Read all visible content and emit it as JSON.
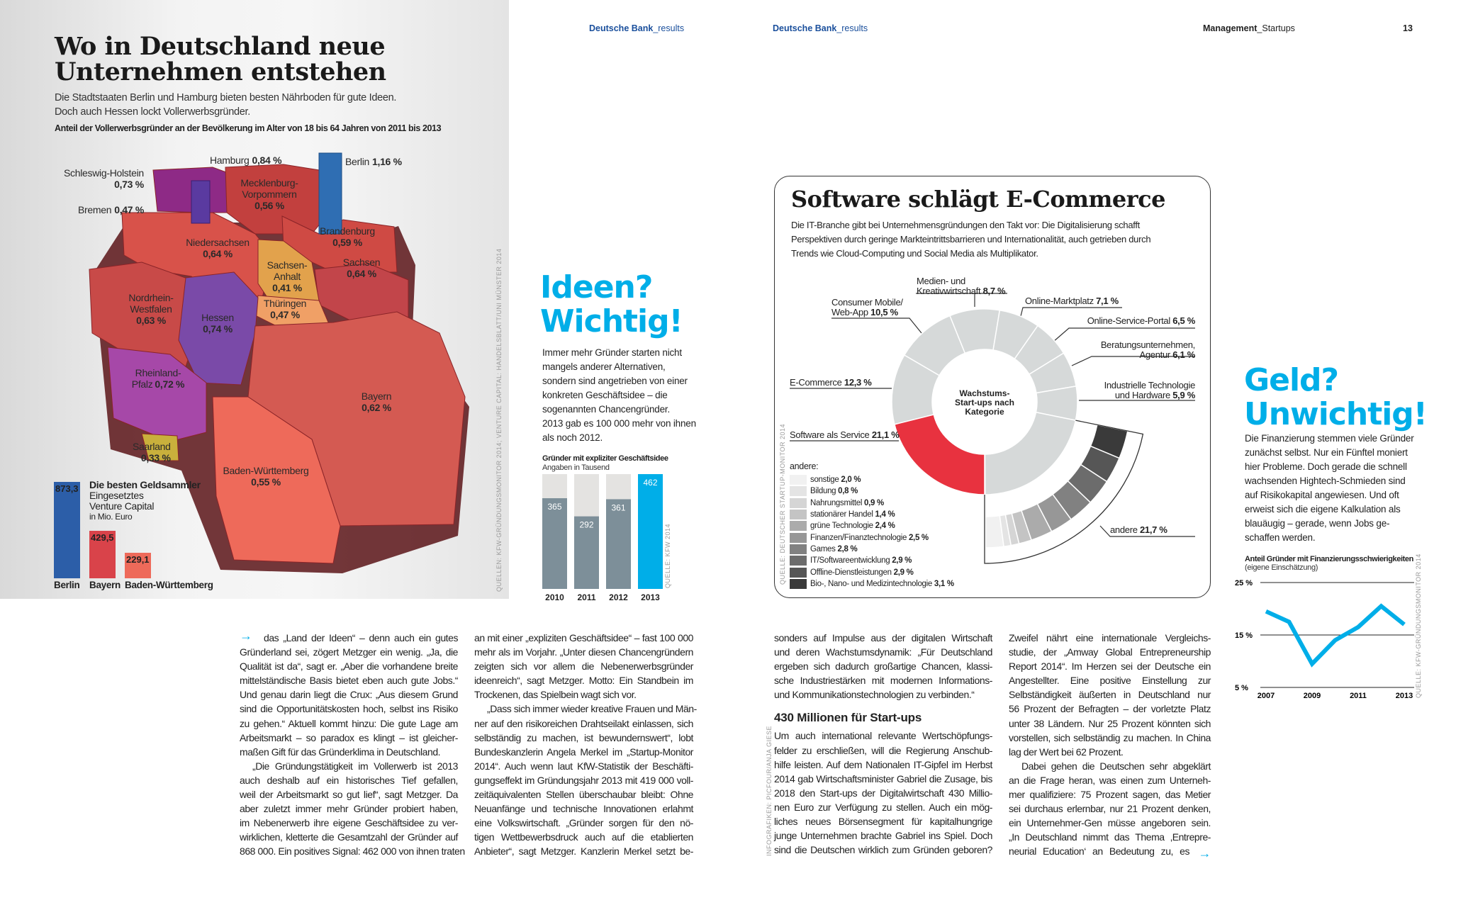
{
  "header": {
    "left_brand": "Deutsche Bank",
    "left_suffix": "_results",
    "mid_brand": "Deutsche Bank",
    "mid_suffix": "_results",
    "section": "Management",
    "section_suffix": "_Startups",
    "page_number": "13"
  },
  "map_section": {
    "title_line1": "Wo in Deutschland neue",
    "title_line2": "Unternehmen entstehen",
    "subtitle_line1": "Die Stadtstaaten Berlin und Hamburg bieten besten Nährboden für gute Ideen.",
    "subtitle_line2": "Doch auch Hessen lockt Vollerwerbsgründer.",
    "caption": "Anteil der Vollerwerbsgründer an der Bevölkerung im Alter von 18 bis 64 Jahren von 2011 bis 2013",
    "source": "QUELLEN: KFW-GRÜNDUNGSMONITOR 2014; VENTURE CAPITAL: HANDELSBLATT/UNI MÜNSTER 2014",
    "states": [
      {
        "name": "Schleswig-Holstein",
        "value": "0,73 %",
        "color": "#8e2a86"
      },
      {
        "name": "Hamburg",
        "value": "0,84 %",
        "color": "#5e3a9e"
      },
      {
        "name": "Mecklenburg-Vorpommern",
        "value": "0,56 %",
        "color": "#c2403e"
      },
      {
        "name": "Berlin",
        "value": "1,16 %",
        "color": "#2f6eb3"
      },
      {
        "name": "Bremen",
        "value": "0,47 %",
        "color": "#c2403e"
      },
      {
        "name": "Brandenburg",
        "value": "0,59 %",
        "color": "#cf4a44"
      },
      {
        "name": "Niedersachsen",
        "value": "0,64 %",
        "color": "#d8524a"
      },
      {
        "name": "Sachsen",
        "value": "0,64 %",
        "color": "#c2454a"
      },
      {
        "name": "Sachsen-Anhalt",
        "value": "0,41 %",
        "color": "#e2a24c"
      },
      {
        "name": "Thüringen",
        "value": "0,47 %",
        "color": "#f0a066"
      },
      {
        "name": "Nordrhein-Westfalen",
        "value": "0,63 %",
        "color": "#c84a48"
      },
      {
        "name": "Hessen",
        "value": "0,74 %",
        "color": "#7a4aa8"
      },
      {
        "name": "Rheinland-Pfalz",
        "value": "0,72 %",
        "color": "#a648a8"
      },
      {
        "name": "Saarland",
        "value": "0,33 %",
        "color": "#c9b03c"
      },
      {
        "name": "Bayern",
        "value": "0,62 %",
        "color": "#d45a52"
      },
      {
        "name": "Baden-Württemberg",
        "value": "0,55 %",
        "color": "#ee6a5a"
      }
    ]
  },
  "ideen": {
    "heading_line1": "Ideen?",
    "heading_line2": "Wichtig!",
    "body": [
      "Immer mehr Gründer starten nicht",
      "mangels anderer Alternativen,",
      "sondern sind angetrieben von einer",
      "konkreten Geschäftsidee – die",
      "sogenannten Chancengründer.",
      "2013 gab es 100 000 mehr von ihnen",
      "als noch 2012."
    ]
  },
  "geld": {
    "heading_line1": "Geld?",
    "heading_line2": "Unwichtig!",
    "body": [
      "Die Finanzierung stemmen viele Gründer",
      "zunächst selbst. Nur ein Fünftel moniert",
      "hier Probleme. Doch gerade die schnell",
      "wachsenden Hightech-Schmieden sind",
      "auf Risikokapital angewiesen. Und oft",
      "erweist sich die eigene Kalkulation als",
      "blauäugig – gerade, wenn Jobs ge-",
      "schaffen werden."
    ]
  },
  "donut_box": {
    "title": "Software schlägt E-Commerce",
    "text": [
      "Die IT-Branche gibt bei Unternehmensgründungen den Takt vor: Die Digitalisierung schafft",
      "Perspektiven durch geringe Markteintrittsbarrieren und Internationalität, auch getrieben durch",
      "Trends wie Cloud-Computing und Social Media als Multiplikator."
    ],
    "center_label": [
      "Wachstums-",
      "Start-ups nach",
      "Kategorie"
    ],
    "andere_heading": "andere:",
    "source": "QUELLE: DEUTSCHER STARTUP-MONITOR 2014"
  },
  "chart_data": [
    {
      "id": "vc",
      "type": "bar",
      "title": "Die besten Geldsammler",
      "subtitle": [
        "Eingesetztes",
        "Venture Capital",
        "in Mio. Euro"
      ],
      "categories": [
        "Berlin",
        "Bayern",
        "Baden-Württemberg"
      ],
      "values": [
        873.3,
        429.5,
        229.1
      ],
      "labels": [
        "873,3",
        "429,5",
        "229,1"
      ],
      "colors": [
        "#2c5ea8",
        "#d9434a",
        "#ee6a5a"
      ]
    },
    {
      "id": "gruender",
      "type": "bar",
      "title": "Gründer mit expliziter Geschäftsidee",
      "subtitle": "Angaben in Tausend",
      "categories": [
        "2010",
        "2011",
        "2012",
        "2013"
      ],
      "values": [
        365,
        292,
        361,
        462
      ],
      "labels": [
        "365",
        "292",
        "361",
        "462"
      ],
      "colors": [
        "#7d8f99",
        "#7d8f99",
        "#7d8f99",
        "#00aee8"
      ],
      "source": "QUELLE: KFW 2014"
    },
    {
      "id": "kategorien",
      "type": "pie",
      "start_category": "Software als Service",
      "slices": [
        {
          "label": "Software als Service",
          "value": 21.1,
          "text": "21,1 %",
          "color": "#e8323f"
        },
        {
          "label": "E-Commerce",
          "value": 12.3,
          "text": "12,3 %",
          "color": "#d6d9d9"
        },
        {
          "label": "Consumer Mobile/ Web-App",
          "value": 10.5,
          "text": "10,5 %",
          "color": "#d6d9d9"
        },
        {
          "label": "Medien- und Kreativwirtschaft",
          "value": 8.7,
          "text": "8,7 %",
          "color": "#d6d9d9"
        },
        {
          "label": "Online-Marktplatz",
          "value": 7.1,
          "text": "7,1 %",
          "color": "#d6d9d9"
        },
        {
          "label": "Online-Service-Portal",
          "value": 6.5,
          "text": "6,5 %",
          "color": "#d6d9d9"
        },
        {
          "label": "Beratungsunternehmen, Agentur",
          "value": 6.1,
          "text": "6,1 %",
          "color": "#d6d9d9"
        },
        {
          "label": "Industrielle Technologie und Hardware",
          "value": 5.9,
          "text": "5,9 %",
          "color": "#d6d9d9"
        },
        {
          "label": "andere",
          "value": 21.7,
          "text": "21,7 %",
          "color": "#d6d9d9"
        }
      ]
    },
    {
      "id": "andere",
      "type": "pie",
      "title": "andere:",
      "slices": [
        {
          "label": "sonstige",
          "value": 2.0,
          "text": "2,0 %",
          "color": "#f1f1f1"
        },
        {
          "label": "Bildung",
          "value": 0.8,
          "text": "0,8 %",
          "color": "#e4e4e4"
        },
        {
          "label": "Nahrungsmittel",
          "value": 0.9,
          "text": "0,9 %",
          "color": "#d5d5d5"
        },
        {
          "label": "stationärer Handel",
          "value": 1.4,
          "text": "1,4 %",
          "color": "#c4c4c4"
        },
        {
          "label": "grüne Technologie",
          "value": 2.4,
          "text": "2,4 %",
          "color": "#ababab"
        },
        {
          "label": "Finanzen/Finanztechnologie",
          "value": 2.5,
          "text": "2,5 %",
          "color": "#979797"
        },
        {
          "label": "Games",
          "value": 2.8,
          "text": "2,8 %",
          "color": "#818181"
        },
        {
          "label": "IT/Softwareentwicklung",
          "value": 2.9,
          "text": "2,9 %",
          "color": "#6c6c6c"
        },
        {
          "label": "Offline-Dienstleistungen",
          "value": 2.9,
          "text": "2,9 %",
          "color": "#565656"
        },
        {
          "label": "Bio-, Nano- und Medizintechnologie",
          "value": 3.1,
          "text": "3,1 %",
          "color": "#3a3a3a"
        }
      ]
    },
    {
      "id": "finanzierung",
      "type": "line",
      "title": "Anteil Gründer mit Finanzierungsschwierigkeiten",
      "subtitle": "(eigene Einschätzung)",
      "x": [
        2007,
        2008,
        2009,
        2010,
        2011,
        2012,
        2013
      ],
      "y": [
        19.5,
        17.5,
        9.5,
        14,
        16.5,
        20.5,
        17
      ],
      "xticks": [
        "2007",
        "2009",
        "2011",
        "2013"
      ],
      "yticks": [
        "25 %",
        "15 %",
        "5 %"
      ],
      "ylim": [
        5,
        25
      ],
      "color": "#00aee8",
      "source": "QUELLE: KFW-GRÜNDUNGSMONITOR 2014"
    }
  ],
  "article": {
    "columns": [
      {
        "paragraphs": [
          [
            "das „Land der Ideen“ – denn auch ein gutes",
            "Gründerland sei, zögert Metzger ein wenig. „Ja, die",
            "Qualität ist da“, sagt er. „Aber die vorhandene breite",
            "mittelständische Basis bietet eben auch gute Jobs.“",
            "Und genau darin liegt die Crux: „Aus diesem Grund",
            "sind die Opportunitätskosten hoch, selbst ins Risiko",
            "zu gehen.“ Aktuell kommt hinzu: Die gute Lage am",
            "Arbeitsmarkt – so paradox es klingt – ist gleicher-",
            "maßen Gift für das Gründerklima in Deutschland."
          ],
          [
            "„Die Gründungstätigkeit im Vollerwerb ist 2013",
            "auch deshalb auf ein historisches Tief gefallen,",
            "weil der Arbeitsmarkt so gut lief“, sagt Metzger. Da",
            "aber zuletzt immer mehr Gründer probiert haben,",
            "im Nebenerwerb ihre eigene Geschäftsidee zu ver-",
            "wirklichen, kletterte die Gesamtzahl der Gründer auf",
            "868 000. Ein positives Signal: 462 000 von ihnen traten"
          ]
        ]
      },
      {
        "paragraphs": [
          [
            "an mit einer „expliziten Geschäftsidee“ – fast 100 000",
            "mehr als im Vorjahr. „Unter diesen Chancengründern",
            "zeigten sich vor allem die Nebenerwerbsgründer",
            "ideenreich“, sagt Metzger. Motto: Ein Standbein im",
            "Trockenen, das Spielbein wagt sich vor."
          ],
          [
            "„Dass sich immer wieder kreative Frauen und Män-",
            "ner auf den risikoreichen Drahtseilakt einlassen, sich",
            "selbständig zu machen, ist bewundernswert“, lobt",
            "Bundeskanzlerin Angela Merkel im „Startup-Monitor",
            "2014“. Auch wenn laut KfW-Statistik der Beschäfti-",
            "gungseffekt im Gründungsjahr 2013 mit 419 000 voll-",
            "zeitäquivalenten Stellen überschaubar bleibt: Ohne",
            "Neuanfänge und technische Innovationen erlahmt",
            "eine Volkswirtschaft. „Gründer sorgen für den nö-",
            "tigen Wettbewerbsdruck auch auf die etablierten",
            "Anbieter“, sagt Metzger. Kanzlerin Merkel setzt be-"
          ]
        ]
      },
      {
        "paragraphs": [
          [
            "sonders auf Impulse aus der digitalen Wirtschaft",
            "und deren Wachstumsdynamik: „Für Deutschland",
            "ergeben sich dadurch großartige Chancen, klassi-",
            "sche Industriestärken mit modernen Informations-",
            "und Kommunikationstechnologien zu verbinden.“"
          ],
          [
            "Um auch international relevante Wertschöpfungs-",
            "felder zu erschließen, will die Regierung Anschub-",
            "hilfe leisten. Auf dem Nationalen IT-Gipfel im Herbst",
            "2014 gab Wirtschaftsminister Gabriel die Zusage, bis",
            "2018 den Start-ups der Digitalwirtschaft 430 Millio-",
            "nen Euro zur Verfügung zu stellen. Auch ein mög-",
            "liches neues Börsensegment für kapitalhungrige",
            "junge Unternehmen brachte Gabriel ins Spiel. Doch",
            "sind die Deutschen wirklich zum Gründen geboren?"
          ]
        ]
      },
      {
        "paragraphs": [
          [
            "Zweifel nährt eine internationale Vergleichs-",
            "studie, der „Amway Global Entrepreneurship",
            "Report 2014“. Im Herzen sei der Deutsche ein",
            "Angestellter. Eine positive Einstellung zur",
            "Selbständigkeit äußerten in Deutschland nur",
            "56 Prozent der Befragten – der vorletzte Platz",
            "unter 38 Ländern. Nur 25 Prozent könnten sich",
            "vorstellen, sich selbständig zu machen. In China",
            "lag der Wert bei 62 Prozent."
          ],
          [
            "Dabei gehen die Deutschen sehr abgeklärt",
            "an die Frage heran, was einen zum Unterneh-",
            "mer qualifiziere: 75 Prozent sagen, das Metier",
            "sei durchaus erlernbar, nur 21 Prozent denken,",
            "ein Unternehmer-Gen müsse angeboren sein.",
            "„In Deutschland nimmt das Thema ‚Entrepre-",
            "neurial Education‘ an Bedeutung zu, es"
          ]
        ]
      }
    ],
    "subheading": "430 Millionen für Start-ups",
    "credit": "INFOGRAFIKEN: PICFOUR/ANJA GIESE",
    "arrow_icon": "→"
  }
}
